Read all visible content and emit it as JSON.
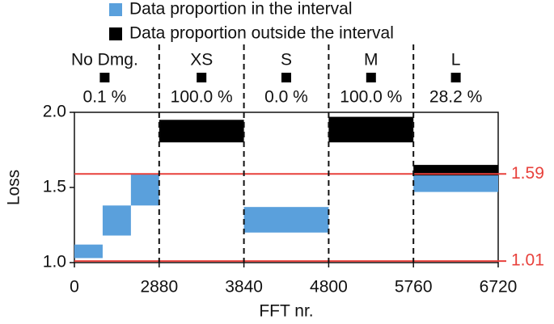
{
  "chart_data": {
    "type": "band-scatter",
    "xlabel": "FFT nr.",
    "ylabel": "Loss",
    "xlim": [
      0,
      6720
    ],
    "xticks": [
      0,
      2880,
      3840,
      4800,
      5760,
      6720
    ],
    "ylim": [
      1.0,
      2.0
    ],
    "yticks": [
      {
        "value": 1.0,
        "label": "1.0"
      },
      1.5,
      {
        "value": 2.0,
        "label": "2.0"
      }
    ],
    "groups": [
      {
        "name": "No Dmg.",
        "proportion": "0.1 %"
      },
      {
        "name": "XS",
        "proportion": "100.0 %"
      },
      {
        "name": "S",
        "proportion": "0.0 %"
      },
      {
        "name": "M",
        "proportion": "100.0 %"
      },
      {
        "name": "L",
        "proportion": "28.2 %"
      }
    ],
    "thresholds": [
      {
        "value": 1.59,
        "color": "#e8413c"
      },
      {
        "value": 1.01,
        "color": "#e8413c"
      }
    ],
    "series": [
      {
        "name": "Data proportion in the interval",
        "color": "#5aa0dc",
        "segments": [
          {
            "x": [
              0,
              960
            ],
            "y": [
              1.03,
              1.12
            ]
          },
          {
            "x": [
              960,
              1920
            ],
            "y": [
              1.18,
              1.38
            ]
          },
          {
            "x": [
              1920,
              2880
            ],
            "y": [
              1.38,
              1.59
            ]
          },
          {
            "x": [
              3840,
              4800
            ],
            "y": [
              1.2,
              1.37
            ]
          },
          {
            "x": [
              5760,
              6720
            ],
            "y": [
              1.47,
              1.6
            ]
          }
        ]
      },
      {
        "name": "Data proportion outside the interval",
        "color": "#000000",
        "segments": [
          {
            "x": [
              2880,
              3840
            ],
            "y": [
              1.8,
              1.95
            ]
          },
          {
            "x": [
              4800,
              5760
            ],
            "y": [
              1.8,
              1.97
            ]
          },
          {
            "x": [
              5760,
              6720
            ],
            "y": [
              1.58,
              1.65
            ]
          }
        ]
      }
    ]
  }
}
